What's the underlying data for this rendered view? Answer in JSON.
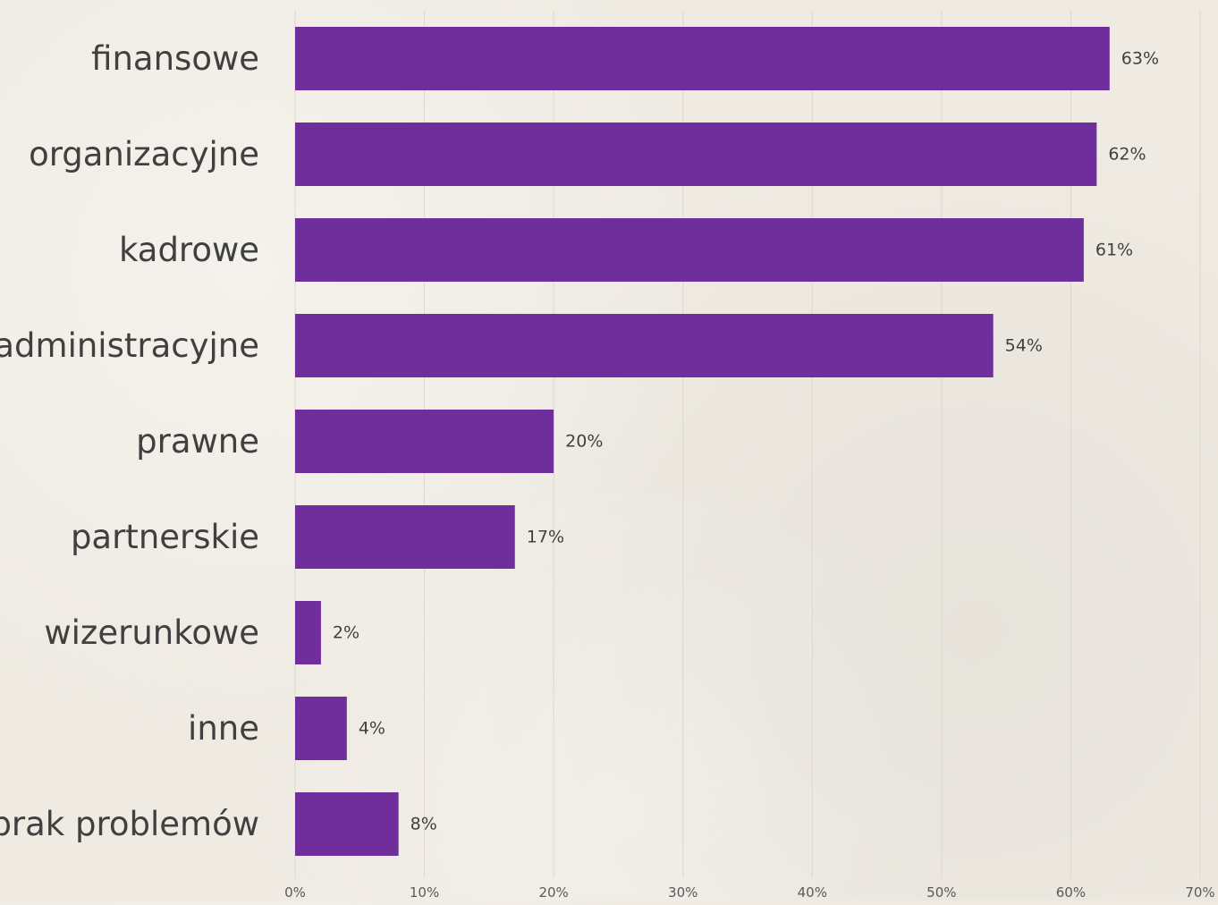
{
  "chart_data": {
    "type": "bar",
    "orientation": "horizontal",
    "categories": [
      "finansowe",
      "organizacyjne",
      "kadrowe",
      "administracyjne",
      "prawne",
      "partnerskie",
      "wizerunkowe",
      "inne",
      "brak problemów"
    ],
    "values": [
      63,
      62,
      61,
      54,
      20,
      17,
      2,
      4,
      8
    ],
    "data_labels": [
      "63%",
      "62%",
      "61%",
      "54%",
      "20%",
      "17%",
      "2%",
      "4%",
      "8%"
    ],
    "xlim": [
      0,
      70
    ],
    "x_ticks": [
      0,
      10,
      20,
      30,
      40,
      50,
      60,
      70
    ],
    "x_tick_labels": [
      "0%",
      "10%",
      "20%",
      "30%",
      "40%",
      "50%",
      "60%",
      "70%"
    ],
    "title": "",
    "xlabel": "",
    "ylabel": "",
    "grid": "vertical",
    "legend": "none",
    "bar_color": "#6f2e9b",
    "grid_color": "#dcd7ce",
    "label_color": "#404040",
    "tick_color": "#595959"
  }
}
